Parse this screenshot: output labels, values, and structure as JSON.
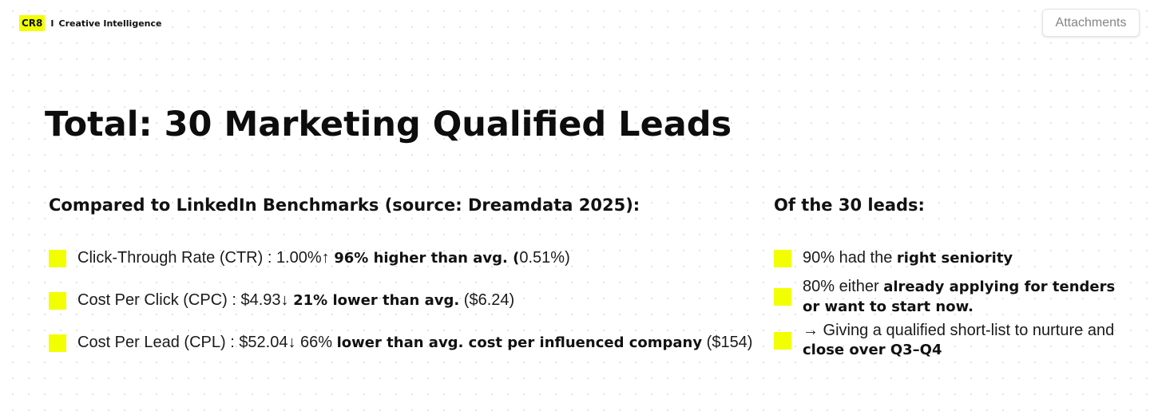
{
  "logo": {
    "badge": "CR8",
    "separator": "I",
    "text": "Creative Intelligence"
  },
  "header": {
    "attachments_label": "Attachments"
  },
  "title": "Total: 30 Marketing Qualified Leads",
  "left_section": {
    "heading": "Compared to LinkedIn Benchmarks (source: Dreamdata 2025):",
    "bullets": [
      {
        "metric": "Click-Through Rate (CTR)",
        "value": "1.00%",
        "arrow": "↑",
        "highlight": "96% higher than avg. (",
        "benchmark": "0.51%)"
      },
      {
        "metric": "Cost Per Click (CPC)",
        "value": "$4.93",
        "arrow": "↓",
        "highlight": "21% lower than avg.",
        "benchmark": "($6.24)"
      },
      {
        "metric": "Cost Per Lead (CPL)",
        "value": "$52.04",
        "arrow": "↓",
        "plain": "66%",
        "highlight": "lower than avg. cost per influenced company",
        "benchmark": "($154)"
      }
    ]
  },
  "right_section": {
    "heading": "Of the 30 leads:",
    "bullets": [
      {
        "prefix": "90% had the",
        "highlight": "right seniority"
      },
      {
        "prefix": "80% either",
        "highlight": "already applying for tenders or want to start now."
      },
      {
        "prefix": "→ Giving a qualified short-list to nurture and",
        "highlight": "close over Q3–Q4"
      }
    ]
  },
  "colors": {
    "accent": "#f2ff00",
    "text": "#111111",
    "button_text": "#858585"
  }
}
